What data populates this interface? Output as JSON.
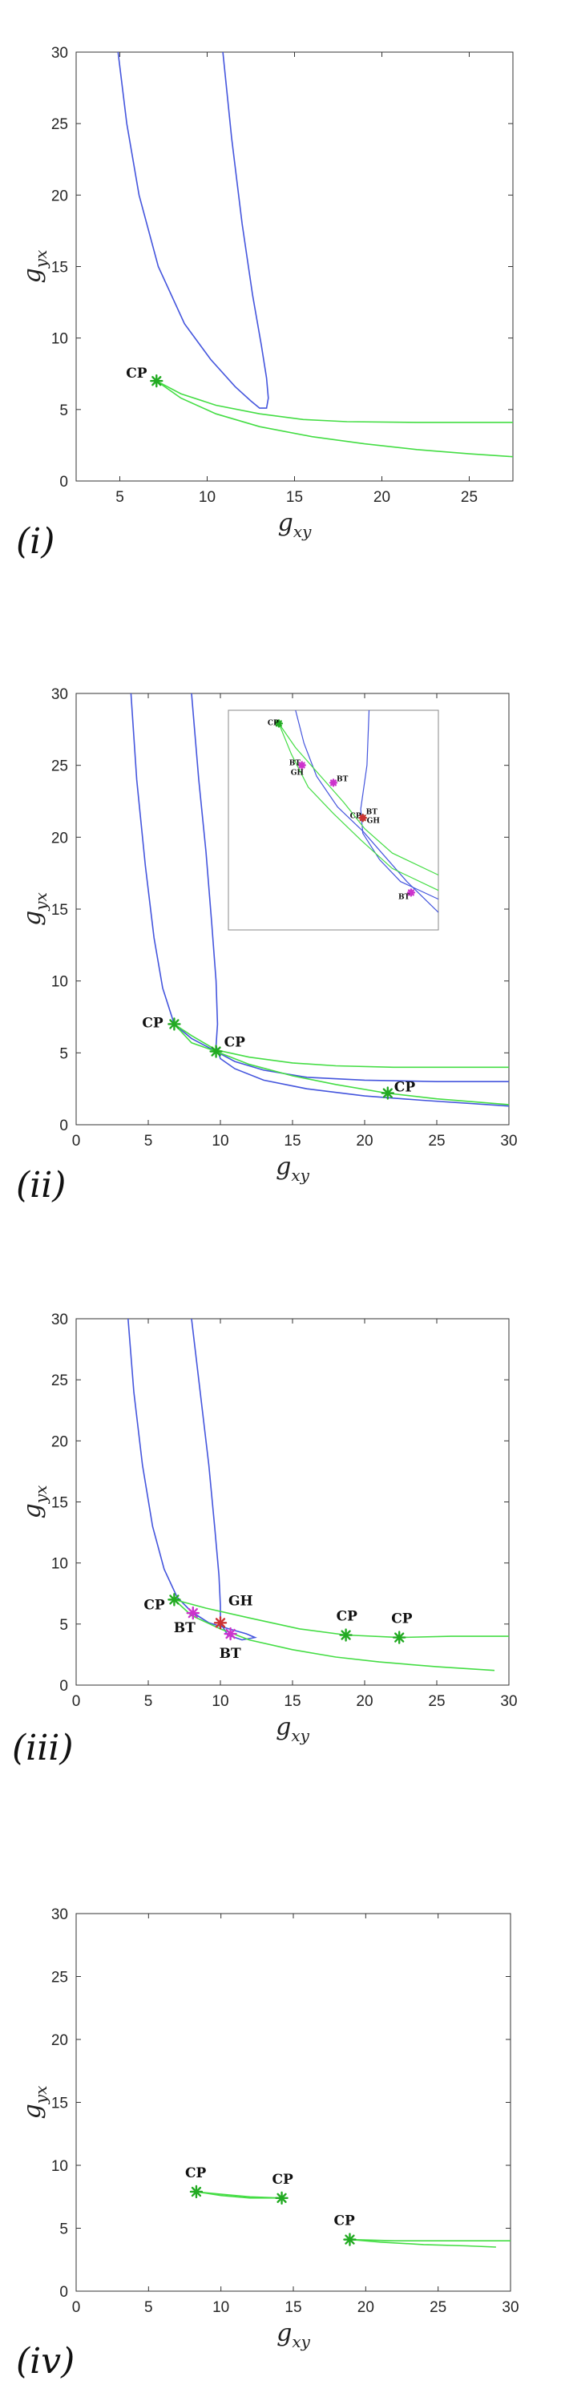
{
  "chart_data": [
    {
      "type": "line",
      "panel_label": "(i)",
      "xlabel": "g_xy",
      "ylabel": "g_yx",
      "xlim": [
        2.5,
        27.5
      ],
      "ylim": [
        0,
        30
      ],
      "xticks": [
        5,
        10,
        15,
        20,
        25
      ],
      "yticks": [
        0,
        5,
        10,
        15,
        20,
        25,
        30
      ],
      "series": [
        {
          "name": "blue-branch",
          "color": "#4455dd",
          "points": [
            [
              4.9,
              30
            ],
            [
              5.4,
              25
            ],
            [
              6.1,
              20
            ],
            [
              7.2,
              15
            ],
            [
              8.7,
              11
            ],
            [
              10.2,
              8.5
            ],
            [
              11.6,
              6.6
            ],
            [
              12.5,
              5.6
            ],
            [
              13,
              5.1
            ],
            [
              13.4,
              5.1
            ],
            [
              13.5,
              5.8
            ],
            [
              13.4,
              7.2
            ],
            [
              13.1,
              9.5
            ],
            [
              12.6,
              13
            ],
            [
              12,
              18
            ],
            [
              11.4,
              24
            ],
            [
              10.9,
              30
            ]
          ]
        },
        {
          "name": "green-branch-upper",
          "color": "#44dd44",
          "points": [
            [
              7.1,
              7
            ],
            [
              8.5,
              6.1
            ],
            [
              10.5,
              5.3
            ],
            [
              13,
              4.7
            ],
            [
              15.5,
              4.3
            ],
            [
              18,
              4.15
            ],
            [
              22,
              4.1
            ],
            [
              27.5,
              4.1
            ]
          ]
        },
        {
          "name": "green-branch-lower",
          "color": "#44dd44",
          "points": [
            [
              7.1,
              7
            ],
            [
              8.5,
              5.8
            ],
            [
              10.5,
              4.7
            ],
            [
              13,
              3.8
            ],
            [
              16,
              3.1
            ],
            [
              19,
              2.6
            ],
            [
              22,
              2.2
            ],
            [
              25,
              1.9
            ],
            [
              27.5,
              1.7
            ]
          ]
        }
      ],
      "markers": [
        {
          "label": "CP",
          "x": 7.1,
          "y": 7,
          "color": "#22aa22",
          "label_dx": -38,
          "label_dy": -4
        }
      ]
    },
    {
      "type": "line",
      "panel_label": "(ii)",
      "xlabel": "g_xy",
      "ylabel": "g_yx",
      "xlim": [
        0,
        30
      ],
      "ylim": [
        0,
        30
      ],
      "xticks": [
        0,
        5,
        10,
        15,
        20,
        25,
        30
      ],
      "yticks": [
        0,
        5,
        10,
        15,
        20,
        25,
        30
      ],
      "series": [
        {
          "name": "blue-left",
          "color": "#4455dd",
          "points": [
            [
              3.8,
              30
            ],
            [
              4.2,
              24
            ],
            [
              4.8,
              18
            ],
            [
              5.4,
              13
            ],
            [
              6,
              9.5
            ],
            [
              6.8,
              7
            ],
            [
              8,
              6
            ],
            [
              9.5,
              5.2
            ],
            [
              11,
              4.4
            ],
            [
              13,
              3.8
            ],
            [
              16,
              3.3
            ],
            [
              20,
              3.1
            ],
            [
              25,
              3
            ],
            [
              30,
              3
            ]
          ]
        },
        {
          "name": "blue-right",
          "color": "#4455dd",
          "points": [
            [
              8,
              30
            ],
            [
              8.5,
              24
            ],
            [
              9,
              19
            ],
            [
              9.4,
              14
            ],
            [
              9.7,
              10
            ],
            [
              9.8,
              7
            ],
            [
              9.7,
              5.5
            ],
            [
              10,
              4.6
            ],
            [
              11,
              3.9
            ],
            [
              13,
              3.1
            ],
            [
              16,
              2.5
            ],
            [
              20,
              2
            ],
            [
              24,
              1.7
            ],
            [
              30,
              1.3
            ]
          ]
        },
        {
          "name": "green-upper",
          "color": "#44dd44",
          "points": [
            [
              6.8,
              7
            ],
            [
              8,
              6.2
            ],
            [
              9.7,
              5.2
            ],
            [
              12,
              4.7
            ],
            [
              15,
              4.3
            ],
            [
              18,
              4.1
            ],
            [
              22,
              4
            ],
            [
              30,
              4
            ]
          ]
        },
        {
          "name": "green-lower",
          "color": "#44dd44",
          "points": [
            [
              6.8,
              7
            ],
            [
              8,
              5.7
            ],
            [
              9.7,
              5.1
            ],
            [
              12,
              4.2
            ],
            [
              15,
              3.4
            ],
            [
              18,
              2.8
            ],
            [
              21.5,
              2.2
            ],
            [
              25,
              1.8
            ],
            [
              30,
              1.4
            ]
          ]
        }
      ],
      "markers": [
        {
          "label": "CP",
          "x": 6.8,
          "y": 7,
          "color": "#22aa22",
          "label_dx": -40,
          "label_dy": 4
        },
        {
          "label": "CP",
          "x": 9.7,
          "y": 5.1,
          "color": "#22aa22",
          "label_dx": 10,
          "label_dy": -6
        },
        {
          "label": "CP",
          "x": 21.6,
          "y": 2.2,
          "color": "#22aa22",
          "label_dx": 8,
          "label_dy": -2
        }
      ],
      "inset": {
        "series": [
          {
            "color": "#4455dd",
            "points": [
              [
                0.32,
                0
              ],
              [
                0.36,
                0.15
              ],
              [
                0.42,
                0.3
              ],
              [
                0.52,
                0.44
              ],
              [
                0.64,
                0.55
              ],
              [
                0.74,
                0.66
              ],
              [
                0.85,
                0.78
              ],
              [
                1,
                0.92
              ]
            ]
          },
          {
            "color": "#4455dd",
            "points": [
              [
                0.67,
                0
              ],
              [
                0.66,
                0.25
              ],
              [
                0.63,
                0.45
              ],
              [
                0.64,
                0.56
              ],
              [
                0.72,
                0.68
              ],
              [
                0.82,
                0.78
              ],
              [
                1,
                0.86
              ]
            ]
          },
          {
            "color": "#44dd44",
            "points": [
              [
                0.24,
                0.06
              ],
              [
                0.32,
                0.17
              ],
              [
                0.43,
                0.29
              ],
              [
                0.55,
                0.42
              ],
              [
                0.65,
                0.54
              ],
              [
                0.78,
                0.65
              ],
              [
                1,
                0.75
              ]
            ]
          },
          {
            "color": "#44dd44",
            "points": [
              [
                0.24,
                0.06
              ],
              [
                0.3,
                0.2
              ],
              [
                0.38,
                0.35
              ],
              [
                0.5,
                0.47
              ],
              [
                0.63,
                0.59
              ],
              [
                0.78,
                0.72
              ],
              [
                1,
                0.82
              ]
            ]
          }
        ],
        "markers": [
          {
            "label": "CP",
            "x": 0.24,
            "y": 0.06,
            "color": "#22aa22",
            "label_dx": -14,
            "label_dy": 2
          },
          {
            "label": "BT",
            "x": 0.35,
            "y": 0.25,
            "color": "#cc33cc",
            "label_dx": -16,
            "label_dy": 0
          },
          {
            "label": "GH",
            "x": 0.35,
            "y": 0.25,
            "color": "#cc33cc",
            "label_dx": -14,
            "label_dy": 12,
            "hide_marker": true
          },
          {
            "label": "BT",
            "x": 0.5,
            "y": 0.33,
            "color": "#cc33cc",
            "label_dx": 4,
            "label_dy": -2
          },
          {
            "label": "CP",
            "x": 0.64,
            "y": 0.49,
            "color": "#22aa22",
            "label_dx": -16,
            "label_dy": 0
          },
          {
            "label": "BT",
            "x": 0.64,
            "y": 0.49,
            "color": "#cc3333",
            "label_dx": 4,
            "label_dy": -5,
            "hide_marker": true
          },
          {
            "label": "GH",
            "x": 0.64,
            "y": 0.49,
            "color": "#cc3333",
            "label_dx": 5,
            "label_dy": 6
          },
          {
            "label": "BT",
            "x": 0.87,
            "y": 0.83,
            "color": "#cc33cc",
            "label_dx": -16,
            "label_dy": 8
          }
        ]
      }
    },
    {
      "type": "line",
      "panel_label": "(iii)",
      "xlabel": "g_xy",
      "ylabel": "g_yx",
      "xlim": [
        0,
        30
      ],
      "ylim": [
        0,
        30
      ],
      "xticks": [
        0,
        5,
        10,
        15,
        20,
        25,
        30
      ],
      "yticks": [
        0,
        5,
        10,
        15,
        20,
        25,
        30
      ],
      "series": [
        {
          "name": "blue-left",
          "color": "#4455dd",
          "points": [
            [
              3.6,
              30
            ],
            [
              4,
              24
            ],
            [
              4.6,
              18
            ],
            [
              5.3,
              13
            ],
            [
              6.1,
              9.5
            ],
            [
              7,
              7.2
            ],
            [
              8,
              6
            ],
            [
              9.2,
              5.1
            ],
            [
              10.6,
              4.6
            ],
            [
              11.8,
              4.2
            ],
            [
              12.4,
              3.9
            ],
            [
              11.5,
              3.7
            ],
            [
              10.5,
              4.1
            ],
            [
              10,
              5.1
            ]
          ]
        },
        {
          "name": "blue-right",
          "color": "#4455dd",
          "points": [
            [
              8,
              30
            ],
            [
              8.6,
              24
            ],
            [
              9.2,
              18
            ],
            [
              9.6,
              13
            ],
            [
              9.9,
              9
            ],
            [
              10,
              6.5
            ],
            [
              10,
              5.1
            ]
          ]
        },
        {
          "name": "green-upper",
          "color": "#44dd44",
          "points": [
            [
              6.8,
              7
            ],
            [
              9,
              6.3
            ],
            [
              12,
              5.5
            ],
            [
              15.5,
              4.6
            ],
            [
              18.7,
              4.1
            ],
            [
              22.4,
              3.9
            ],
            [
              26,
              4
            ],
            [
              30,
              4
            ]
          ]
        },
        {
          "name": "green-lower",
          "color": "#44dd44",
          "points": [
            [
              6.8,
              7
            ],
            [
              8,
              5.7
            ],
            [
              10,
              4.6
            ],
            [
              12,
              3.7
            ],
            [
              15,
              2.9
            ],
            [
              18,
              2.3
            ],
            [
              21,
              1.9
            ],
            [
              25,
              1.5
            ],
            [
              29,
              1.2
            ]
          ]
        }
      ],
      "markers": [
        {
          "label": "CP",
          "x": 6.8,
          "y": 7,
          "color": "#22aa22",
          "label_dx": -38,
          "label_dy": 12
        },
        {
          "label": "BT",
          "x": 8.1,
          "y": 5.9,
          "color": "#cc33cc",
          "label_dx": -24,
          "label_dy": 24
        },
        {
          "label": "GH",
          "x": 10,
          "y": 5.1,
          "color": "#cc3333",
          "label_dx": 10,
          "label_dy": -22
        },
        {
          "label": "BT",
          "x": 10.7,
          "y": 4.2,
          "color": "#cc33cc",
          "label_dx": -14,
          "label_dy": 30
        },
        {
          "label": "CP",
          "x": 18.7,
          "y": 4.1,
          "color": "#22aa22",
          "label_dx": -12,
          "label_dy": -18
        },
        {
          "label": "CP",
          "x": 22.4,
          "y": 3.9,
          "color": "#22aa22",
          "label_dx": -10,
          "label_dy": -18
        }
      ]
    },
    {
      "type": "line",
      "panel_label": "(iv)",
      "xlabel": "g_xy",
      "ylabel": "g_yx",
      "xlim": [
        0,
        30
      ],
      "ylim": [
        0,
        30
      ],
      "xticks": [
        0,
        5,
        10,
        15,
        20,
        25,
        30
      ],
      "yticks": [
        0,
        5,
        10,
        15,
        20,
        25,
        30
      ],
      "series": [
        {
          "name": "green-a",
          "color": "#44dd44",
          "points": [
            [
              8.3,
              7.9
            ],
            [
              10,
              7.7
            ],
            [
              12,
              7.5
            ],
            [
              14.2,
              7.4
            ]
          ]
        },
        {
          "name": "green-b",
          "color": "#44dd44",
          "points": [
            [
              8.3,
              7.9
            ],
            [
              10,
              7.6
            ],
            [
              12,
              7.4
            ],
            [
              14.2,
              7.4
            ]
          ]
        },
        {
          "name": "green-c",
          "color": "#44dd44",
          "points": [
            [
              18.9,
              4.1
            ],
            [
              22,
              4
            ],
            [
              26,
              4
            ],
            [
              30,
              4
            ]
          ]
        },
        {
          "name": "green-d",
          "color": "#44dd44",
          "points": [
            [
              18.9,
              4.1
            ],
            [
              21,
              3.9
            ],
            [
              24,
              3.7
            ],
            [
              27,
              3.6
            ],
            [
              29,
              3.5
            ]
          ]
        }
      ],
      "markers": [
        {
          "label": "CP",
          "x": 8.3,
          "y": 7.9,
          "color": "#22aa22",
          "label_dx": -14,
          "label_dy": -18
        },
        {
          "label": "CP",
          "x": 14.2,
          "y": 7.4,
          "color": "#22aa22",
          "label_dx": -12,
          "label_dy": -18
        },
        {
          "label": "CP",
          "x": 18.9,
          "y": 4.1,
          "color": "#22aa22",
          "label_dx": -20,
          "label_dy": -18
        }
      ]
    }
  ]
}
